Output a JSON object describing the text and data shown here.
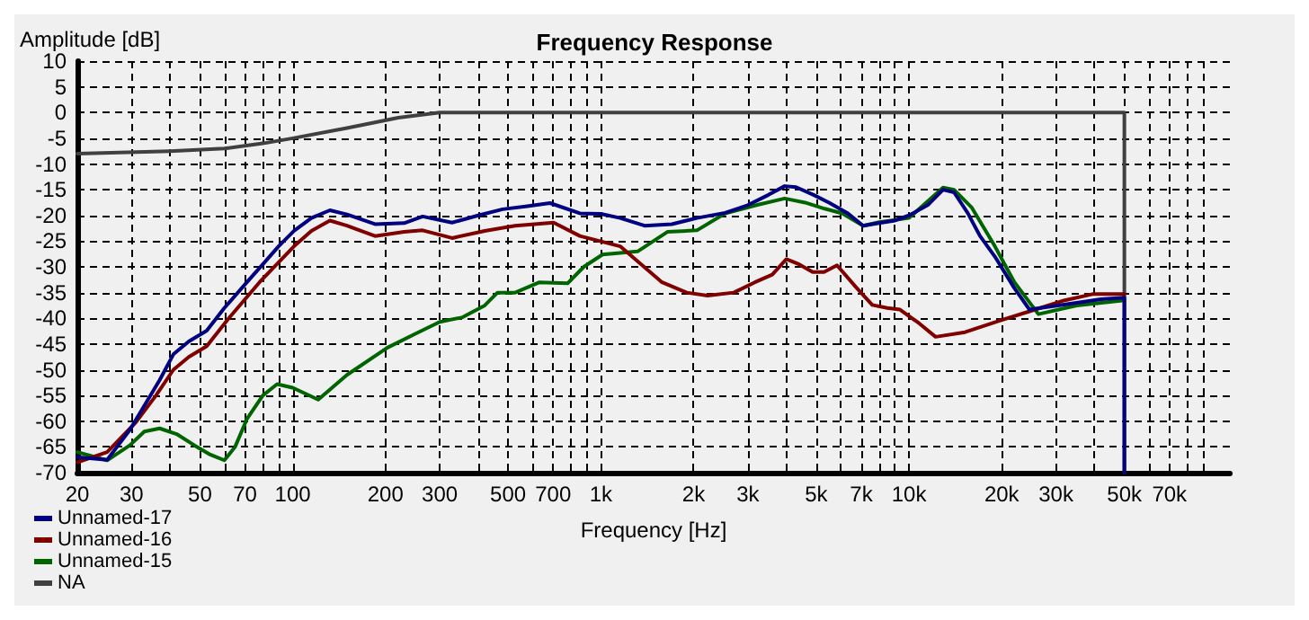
{
  "chart_data": {
    "type": "line",
    "title": "Frequency Response",
    "xlabel": "Frequency [Hz]",
    "ylabel": "Amplitude [dB]",
    "log": "x",
    "grid": true,
    "legend": "bottom left",
    "marker": "none",
    "line_style": "solid",
    "xlim": [
      20,
      110000
    ],
    "ylim": [
      -70,
      10
    ],
    "xticks": [
      20,
      30,
      {
        "value": 40,
        "label": null
      },
      50,
      {
        "value": 60,
        "label": null
      },
      70,
      {
        "value": 80,
        "label": null
      },
      {
        "value": 90,
        "label": null
      },
      100,
      200,
      300,
      {
        "value": 400,
        "label": null
      },
      500,
      {
        "value": 600,
        "label": null
      },
      700,
      {
        "value": 800,
        "label": null
      },
      {
        "value": 900,
        "label": null
      },
      {
        "value": 1000,
        "label": "1k"
      },
      {
        "value": 2000,
        "label": "2k"
      },
      {
        "value": 3000,
        "label": "3k"
      },
      {
        "value": 4000,
        "label": null
      },
      {
        "value": 5000,
        "label": "5k"
      },
      {
        "value": 6000,
        "label": null
      },
      {
        "value": 7000,
        "label": "7k"
      },
      {
        "value": 8000,
        "label": null
      },
      {
        "value": 9000,
        "label": null
      },
      {
        "value": 10000,
        "label": "10k"
      },
      {
        "value": 20000,
        "label": "20k"
      },
      {
        "value": 30000,
        "label": "30k"
      },
      {
        "value": 40000,
        "label": null
      },
      {
        "value": 50000,
        "label": "50k"
      },
      {
        "value": 60000,
        "label": null
      },
      {
        "value": 70000,
        "label": "70k"
      },
      {
        "value": 80000,
        "label": null
      },
      {
        "value": 90000,
        "label": null
      }
    ],
    "yticks": [
      -70,
      -65,
      -60,
      -55,
      -50,
      -45,
      -40,
      -35,
      -30,
      -25,
      -20,
      -15,
      -10,
      -5,
      0,
      5,
      10
    ],
    "series": [
      {
        "name": "Unnamed-17",
        "color": "#000080",
        "x": [
          20,
          25,
          29.6,
          33,
          37,
          41,
          46,
          52.6,
          60,
          71,
          80,
          90,
          101,
          115,
          132,
          150,
          185,
          230,
          264,
          329,
          400,
          480,
          577,
          684,
          855,
          1000,
          1155,
          1386,
          1700,
          2052,
          2530,
          3000,
          3500,
          3950,
          4300,
          4900,
          5500,
          6300,
          7100,
          8000,
          9000,
          10000,
          11500,
          12900,
          14000,
          15500,
          17000,
          19000,
          21900,
          24600,
          28000,
          35000,
          42000,
          50000,
          50000
        ],
        "values": [
          -67,
          -67.5,
          -61.7,
          -57,
          -52,
          -47,
          -44.5,
          -42.4,
          -38,
          -33,
          -29.5,
          -26,
          -23,
          -20.5,
          -19,
          -19.8,
          -21.7,
          -21.5,
          -20.2,
          -21.4,
          -20,
          -18.8,
          -18.2,
          -17.6,
          -19.6,
          -19.7,
          -20.5,
          -22,
          -21.7,
          -20.5,
          -19.5,
          -18,
          -16,
          -14.3,
          -14.5,
          -16,
          -17.5,
          -19.5,
          -22,
          -21.5,
          -21,
          -20,
          -18,
          -15,
          -15.5,
          -19.5,
          -24,
          -28,
          -34,
          -38.3,
          -37.8,
          -37,
          -36.3,
          -36,
          -70
        ]
      },
      {
        "name": "Unnamed-16",
        "color": "#800000",
        "x": [
          20,
          25,
          31,
          36,
          41,
          46,
          52.6,
          62,
          78,
          101,
          115,
          132,
          150,
          185,
          230,
          264,
          329,
          420,
          527,
          703,
          855,
          1155,
          1580,
          1900,
          2220,
          2700,
          3160,
          3600,
          4000,
          4400,
          4870,
          5300,
          5840,
          6740,
          7600,
          8500,
          9350,
          10800,
          12200,
          15200,
          19800,
          25700,
          32000,
          39400,
          50000
        ],
        "values": [
          -68,
          -66,
          -60.2,
          -55,
          -50,
          -47.5,
          -45.4,
          -40,
          -33,
          -26,
          -23,
          -21,
          -22,
          -24,
          -23.2,
          -22.9,
          -24.4,
          -23,
          -22,
          -21.4,
          -24,
          -26,
          -33,
          -35,
          -35.6,
          -35,
          -33,
          -31.5,
          -28.5,
          -29.5,
          -31,
          -31,
          -29.7,
          -34,
          -37.4,
          -38,
          -38.3,
          -41,
          -43.6,
          -42.7,
          -40.4,
          -38.3,
          -36.5,
          -35.3,
          -35.3
        ]
      },
      {
        "name": "Unnamed-15",
        "color": "#006400",
        "x": [
          20,
          25,
          29.6,
          33,
          37,
          42,
          48,
          54,
          60,
          65,
          71,
          80,
          89,
          100,
          121,
          150,
          203,
          250,
          300,
          356,
          420,
          462,
          527,
          632,
          780,
          880,
          1013,
          1316,
          1644,
          2050,
          2530,
          3200,
          3950,
          4600,
          5330,
          6080,
          7100,
          8000,
          10000,
          12900,
          14000,
          16000,
          19000,
          22000,
          26300,
          35000,
          50000
        ],
        "values": [
          -66,
          -67.6,
          -64.7,
          -62,
          -61.4,
          -62.5,
          -64.7,
          -66.5,
          -67.6,
          -65,
          -59.6,
          -55,
          -52.8,
          -53.5,
          -55.8,
          -51,
          -45.7,
          -43,
          -40.7,
          -39.8,
          -37.5,
          -35,
          -35,
          -33,
          -33.2,
          -30,
          -27.6,
          -27,
          -23.2,
          -22.9,
          -19.6,
          -18,
          -16.7,
          -17.5,
          -18.7,
          -19.6,
          -22,
          -21.3,
          -20.5,
          -14.6,
          -15,
          -18.5,
          -26,
          -33,
          -39.2,
          -37.5,
          -36.5
        ]
      },
      {
        "name": "NA",
        "color": "#404040",
        "x": [
          20,
          40,
          60,
          80,
          100,
          150,
          220,
          300,
          1000,
          10000,
          50000,
          50000
        ],
        "values": [
          -8,
          -7.5,
          -7,
          -6,
          -5,
          -3,
          -1,
          0,
          0,
          0,
          0,
          -70
        ]
      }
    ]
  }
}
